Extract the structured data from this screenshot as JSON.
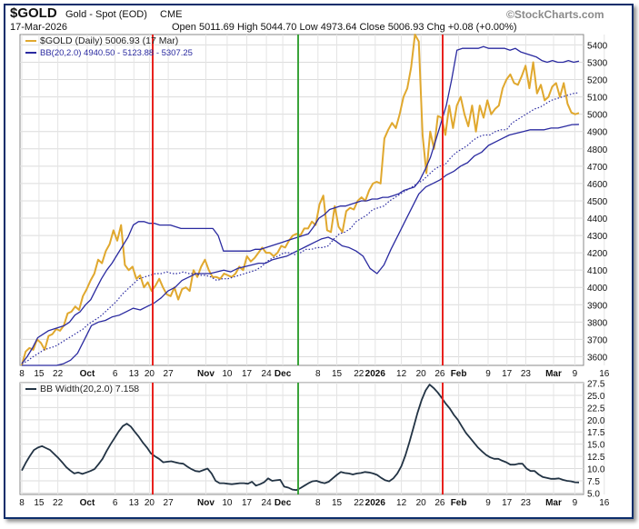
{
  "header": {
    "symbol": "$GOLD",
    "name": "Gold - Spot (EOD)",
    "exchange": "CME",
    "logo": "©StockCharts.com",
    "date": "17-Mar-2026",
    "ohlc": "Open 5011.69  High 5044.70  Low 4973.64  Close 5006.93  Chg +0.08 (+0.00%)"
  },
  "legend": {
    "gold": "$GOLD (Daily) 5006.93 (17 Mar)",
    "bb": "BB(20,2.0) 4940.50 - 5123.88 - 5307.25",
    "bbw": "BB Width(20,2.0) 7.158"
  },
  "colors": {
    "gold": "#e0a82e",
    "band": "#2a2aa0",
    "width_line": "#223344",
    "red_marker": "#e8221e",
    "green_marker": "#3aa33a",
    "frame": "#0c2d6b"
  },
  "chart_data": [
    {
      "type": "line",
      "title": "$GOLD Gold - Spot (EOD) CME",
      "x_ticks": [
        "8",
        "15",
        "22",
        "Oct",
        "6",
        "13",
        "20",
        "27",
        "Nov",
        "10",
        "17",
        "24",
        "Dec",
        "8",
        "15",
        "22",
        "2026",
        "12",
        "20",
        "26",
        "Feb",
        "9",
        "17",
        "23",
        "Mar",
        "9",
        "16"
      ],
      "y_ticks": [
        3600,
        3700,
        3800,
        3900,
        4000,
        4100,
        4200,
        4300,
        4400,
        4500,
        4600,
        4700,
        4800,
        4900,
        5000,
        5100,
        5200,
        5300,
        5400
      ],
      "ylim": [
        3550,
        5460
      ],
      "series": [
        {
          "name": "$GOLD (Daily)",
          "style": "solid",
          "values": [
            3550,
            3630,
            3650,
            3640,
            3700,
            3680,
            3640,
            3720,
            3730,
            3760,
            3750,
            3780,
            3850,
            3860,
            3890,
            3870,
            3950,
            3990,
            4040,
            4080,
            4160,
            4140,
            4210,
            4250,
            4330,
            4270,
            4360,
            4130,
            4100,
            4120,
            4050,
            4070,
            4000,
            4030,
            3980,
            4010,
            4050,
            4000,
            3960,
            3950,
            4000,
            3930,
            3990,
            4000,
            3980,
            4100,
            4060,
            4120,
            4160,
            4100,
            4060,
            4060,
            4050,
            4080,
            4070,
            4060,
            4080,
            4120,
            4100,
            4180,
            4150,
            4170,
            4200,
            4230,
            4200,
            4200,
            4180,
            4200,
            4240,
            4230,
            4270,
            4300,
            4310,
            4300,
            4340,
            4340,
            4380,
            4360,
            4480,
            4530,
            4330,
            4320,
            4470,
            4350,
            4320,
            4440,
            4460,
            4450,
            4500,
            4520,
            4500,
            4560,
            4600,
            4610,
            4600,
            4860,
            4910,
            4950,
            4920,
            5000,
            5100,
            5150,
            5270,
            5470,
            5420,
            4880,
            4660,
            4900,
            4800,
            4990,
            4980,
            4880,
            5050,
            4920,
            5050,
            5100,
            5000,
            4930,
            5050,
            4900,
            5050,
            4980,
            5080,
            5000,
            5030,
            5050,
            5150,
            5200,
            5230,
            5180,
            5170,
            5220,
            5280,
            5150,
            5300,
            5120,
            5170,
            5080,
            5100,
            5160,
            5180,
            5100,
            5180,
            5060,
            5010,
            5000,
            5007
          ]
        },
        {
          "name": "BB upper",
          "style": "solid",
          "values": [
            3560,
            3600,
            3650,
            3710,
            3730,
            3750,
            3760,
            3770,
            3780,
            3800,
            3840,
            3860,
            3900,
            3930,
            3990,
            4050,
            4100,
            4140,
            4190,
            4240,
            4290,
            4360,
            4380,
            4380,
            4370,
            4370,
            4360,
            4360,
            4360,
            4350,
            4340,
            4340,
            4340,
            4340,
            4340,
            4340,
            4340,
            4300,
            4210,
            4210,
            4210,
            4210,
            4210,
            4210,
            4220,
            4220,
            4230,
            4240,
            4250,
            4260,
            4270,
            4280,
            4290,
            4300,
            4310,
            4350,
            4400,
            4420,
            4450,
            4460,
            4470,
            4470,
            4480,
            4490,
            4500,
            4500,
            4510,
            4510,
            4520,
            4520,
            4530,
            4540,
            4560,
            4570,
            4580,
            4620,
            4680,
            4750,
            4850,
            4950,
            5050,
            5200,
            5370,
            5380,
            5380,
            5380,
            5380,
            5390,
            5380,
            5380,
            5380,
            5380,
            5370,
            5380,
            5360,
            5350,
            5340,
            5330,
            5310,
            5300,
            5310,
            5300,
            5300,
            5310,
            5300,
            5307
          ]
        },
        {
          "name": "BB middle",
          "style": "dotted",
          "values": [
            3560,
            3575,
            3600,
            3620,
            3640,
            3650,
            3660,
            3680,
            3700,
            3720,
            3740,
            3760,
            3790,
            3810,
            3830,
            3860,
            3890,
            3920,
            3960,
            3990,
            4020,
            4050,
            4060,
            4070,
            4080,
            4080,
            4090,
            4080,
            4080,
            4090,
            4080,
            4080,
            4070,
            4070,
            4060,
            4040,
            4050,
            4050,
            4060,
            4070,
            4080,
            4090,
            4100,
            4120,
            4150,
            4170,
            4180,
            4200,
            4200,
            4190,
            4200,
            4220,
            4220,
            4230,
            4230,
            4240,
            4280,
            4310,
            4320,
            4340,
            4380,
            4400,
            4420,
            4450,
            4460,
            4470,
            4500,
            4520,
            4540,
            4560,
            4580,
            4600,
            4620,
            4650,
            4680,
            4700,
            4710,
            4750,
            4780,
            4800,
            4820,
            4850,
            4870,
            4880,
            4880,
            4900,
            4910,
            4910,
            4950,
            4970,
            4990,
            5010,
            5030,
            5040,
            5060,
            5080,
            5090,
            5100,
            5110,
            5120,
            5124
          ]
        },
        {
          "name": "BB lower",
          "style": "solid",
          "values": [
            3530,
            3530,
            3530,
            3530,
            3530,
            3540,
            3560,
            3580,
            3620,
            3700,
            3780,
            3800,
            3810,
            3830,
            3840,
            3860,
            3880,
            3870,
            3890,
            3910,
            3940,
            3980,
            4000,
            4040,
            4060,
            4080,
            4080,
            4080,
            4090,
            4100,
            4090,
            4110,
            4120,
            4130,
            4140,
            4140,
            4160,
            4170,
            4180,
            4200,
            4220,
            4240,
            4260,
            4280,
            4290,
            4270,
            4240,
            4230,
            4210,
            4180,
            4110,
            4080,
            4130,
            4220,
            4300,
            4380,
            4460,
            4540,
            4580,
            4600,
            4620,
            4650,
            4670,
            4700,
            4720,
            4760,
            4780,
            4820,
            4840,
            4860,
            4880,
            4890,
            4900,
            4910,
            4910,
            4910,
            4920,
            4920,
            4930,
            4940,
            4941
          ]
        }
      ],
      "vertical_markers": [
        {
          "label": "20 Oct",
          "color": "red"
        },
        {
          "label": "8 Dec",
          "color": "green"
        },
        {
          "label": "Feb (~29 Jan)",
          "color": "red"
        }
      ]
    },
    {
      "type": "line",
      "title": "BB Width(20,2.0) 7.158",
      "x_ticks": [
        "8",
        "15",
        "22",
        "Oct",
        "6",
        "13",
        "20",
        "27",
        "Nov",
        "10",
        "17",
        "24",
        "Dec",
        "8",
        "15",
        "22",
        "2026",
        "12",
        "20",
        "26",
        "Feb",
        "9",
        "17",
        "23",
        "Mar",
        "9",
        "16"
      ],
      "y_ticks": [
        5.0,
        7.5,
        10.0,
        12.5,
        15.0,
        17.5,
        20.0,
        22.5,
        25.0,
        27.5
      ],
      "ylim": [
        4.7,
        27.6
      ],
      "series": [
        {
          "name": "BB Width",
          "values": [
            9.6,
            11.2,
            12.6,
            13.8,
            14.3,
            14.6,
            14.2,
            13.8,
            13.0,
            12.2,
            11.3,
            10.3,
            9.6,
            9.0,
            9.2,
            8.9,
            9.2,
            9.5,
            9.9,
            10.9,
            12.0,
            13.6,
            15.0,
            16.3,
            17.6,
            18.7,
            19.2,
            18.6,
            17.5,
            16.5,
            15.3,
            14.3,
            13.1,
            12.5,
            12.0,
            11.3,
            11.4,
            11.5,
            11.3,
            11.1,
            11.0,
            10.4,
            9.9,
            9.5,
            9.4,
            9.7,
            10.0,
            9.0,
            7.5,
            7.0,
            7.0,
            6.9,
            6.8,
            6.9,
            7.0,
            7.0,
            6.9,
            7.3,
            6.5,
            6.8,
            7.2,
            8.0,
            7.5,
            7.6,
            7.7,
            6.3,
            6.1,
            5.7,
            5.6,
            6.0,
            6.5,
            7.0,
            7.4,
            7.5,
            7.2,
            7.0,
            7.3,
            8.0,
            8.7,
            9.3,
            9.1,
            9.0,
            8.8,
            9.0,
            9.1,
            9.3,
            9.2,
            9.0,
            8.7,
            8.1,
            7.6,
            7.4,
            8.0,
            9.0,
            10.5,
            12.7,
            15.4,
            18.4,
            21.4,
            24.0,
            26.0,
            27.2,
            26.5,
            25.6,
            24.5,
            23.3,
            22.3,
            21.0,
            20.0,
            18.6,
            17.3,
            16.3,
            15.3,
            14.3,
            13.5,
            12.8,
            12.3,
            12.0,
            12.0,
            11.6,
            11.3,
            10.8,
            10.8,
            11.0,
            11.0,
            10.0,
            9.5,
            9.5,
            8.8,
            8.3,
            8.1,
            7.9,
            7.9,
            8.0,
            7.7,
            7.5,
            7.4,
            7.2,
            7.158
          ]
        }
      ]
    }
  ]
}
